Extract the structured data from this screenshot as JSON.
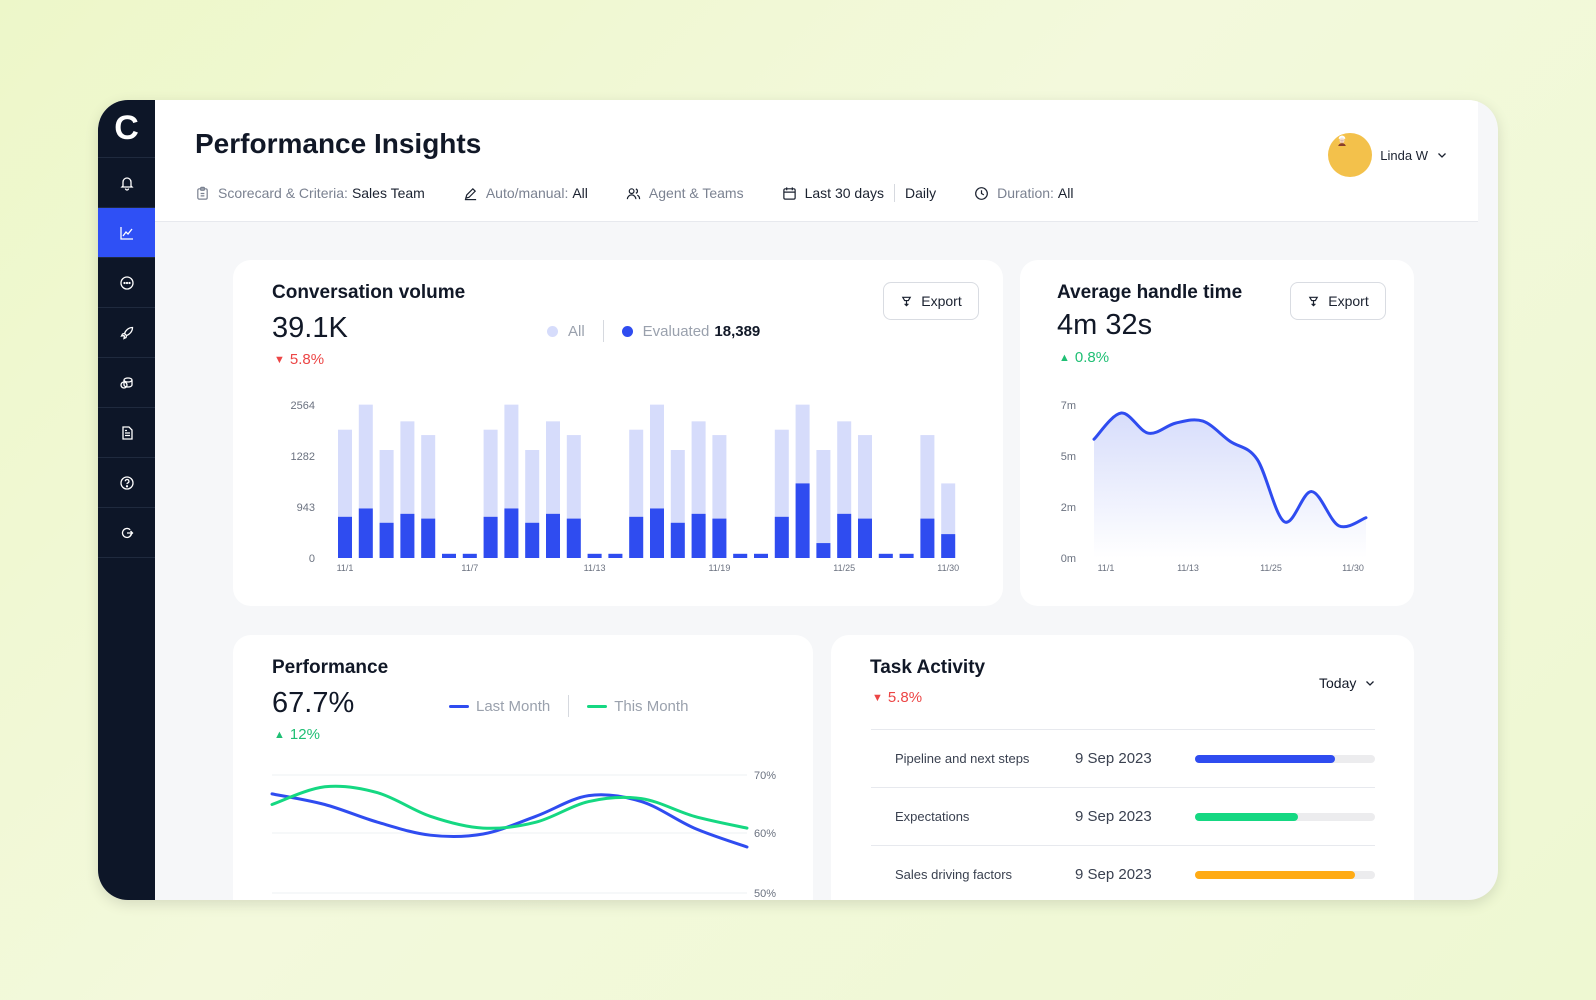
{
  "app": {
    "logo": "C",
    "title": "Performance Insights"
  },
  "sidebar": {
    "items": [
      {
        "name": "notifications",
        "icon": "bell-icon"
      },
      {
        "name": "analytics",
        "icon": "chart-icon",
        "active": true
      },
      {
        "name": "conversations",
        "icon": "chat-icon"
      },
      {
        "name": "launch",
        "icon": "rocket-icon"
      },
      {
        "name": "coins",
        "icon": "coins-icon"
      },
      {
        "name": "documents",
        "icon": "document-icon"
      },
      {
        "name": "help",
        "icon": "help-icon"
      },
      {
        "name": "logout",
        "icon": "logout-icon"
      }
    ]
  },
  "filters": {
    "scorecard_label": "Scorecard & Criteria:",
    "scorecard_value": "Sales Team",
    "auto_label": "Auto/manual:",
    "auto_value": "All",
    "agent_label": "Agent & Teams",
    "range_value": "Last 30 days",
    "granularity": "Daily",
    "duration_label": "Duration:",
    "duration_value": "All"
  },
  "user": {
    "name": "Linda W"
  },
  "conversation_volume": {
    "title": "Conversation volume",
    "value": "39.1K",
    "delta": "5.8%",
    "export_label": "Export",
    "legend_all": "All",
    "legend_evaluated": "Evaluated",
    "evaluated_count": "18,389"
  },
  "handle_time": {
    "title": "Average handle time",
    "value": "4m 32s",
    "delta": "0.8%",
    "export_label": "Export"
  },
  "performance": {
    "title": "Performance",
    "value": "67.7%",
    "delta": "12%",
    "legend_last": "Last Month",
    "legend_this": "This Month"
  },
  "task_activity": {
    "title": "Task Activity",
    "delta": "5.8%",
    "period": "Today",
    "tasks": [
      {
        "name": "Pipeline and next steps",
        "date": "9 Sep 2023",
        "progress": 0.78,
        "color": "#2f4cf0"
      },
      {
        "name": "Expectations",
        "date": "9 Sep 2023",
        "progress": 0.57,
        "color": "#15d882"
      },
      {
        "name": "Sales driving factors",
        "date": "9 Sep 2023",
        "progress": 0.89,
        "color": "#ffab14"
      }
    ]
  },
  "colors": {
    "accent": "#2f50f5",
    "bar_all": "#d6dcfb",
    "bar_eval": "#2f4cf0",
    "green": "#1fbf74",
    "red": "#ec4545"
  },
  "chart_data": [
    {
      "type": "bar",
      "name": "conversation-volume",
      "x_ticks": [
        "11/1",
        "11/7",
        "11/13",
        "11/19",
        "11/25",
        "11/30"
      ],
      "y_ticks": [
        "2564",
        "1282",
        "943",
        "0"
      ],
      "series": [
        {
          "name": "All",
          "values": [
            2150,
            2570,
            1810,
            2290,
            2060,
            70,
            70,
            2150,
            2570,
            1810,
            2290,
            2060,
            70,
            70,
            2150,
            2570,
            1810,
            2290,
            2060,
            70,
            70,
            2150,
            2570,
            1810,
            2290,
            2060,
            70,
            70,
            2060,
            1250
          ]
        },
        {
          "name": "Evaluated",
          "values": [
            690,
            830,
            590,
            740,
            660,
            70,
            70,
            690,
            830,
            590,
            740,
            660,
            70,
            70,
            690,
            830,
            590,
            740,
            660,
            70,
            70,
            690,
            1250,
            250,
            740,
            660,
            70,
            70,
            660,
            400
          ]
        }
      ]
    },
    {
      "type": "area",
      "name": "average-handle-time",
      "x_ticks": [
        "11/1",
        "11/13",
        "11/25",
        "11/30"
      ],
      "y_ticks": [
        "7m",
        "5m",
        "2m",
        "0m"
      ],
      "values": [
        5.9,
        7.2,
        6.2,
        6.7,
        6.8,
        5.8,
        4.9,
        1.8,
        3.3,
        1.6,
        2.0
      ]
    },
    {
      "type": "line",
      "name": "performance",
      "y_ticks": [
        "70%",
        "60%",
        "50%"
      ],
      "series": [
        {
          "name": "Last Month",
          "values": [
            66.8,
            65,
            62,
            59.8,
            60,
            63,
            66.5,
            65.5,
            61,
            57.8
          ]
        },
        {
          "name": "This Month",
          "values": [
            65,
            68,
            67,
            63,
            61,
            62,
            65.5,
            66,
            63,
            61
          ]
        }
      ]
    }
  ]
}
